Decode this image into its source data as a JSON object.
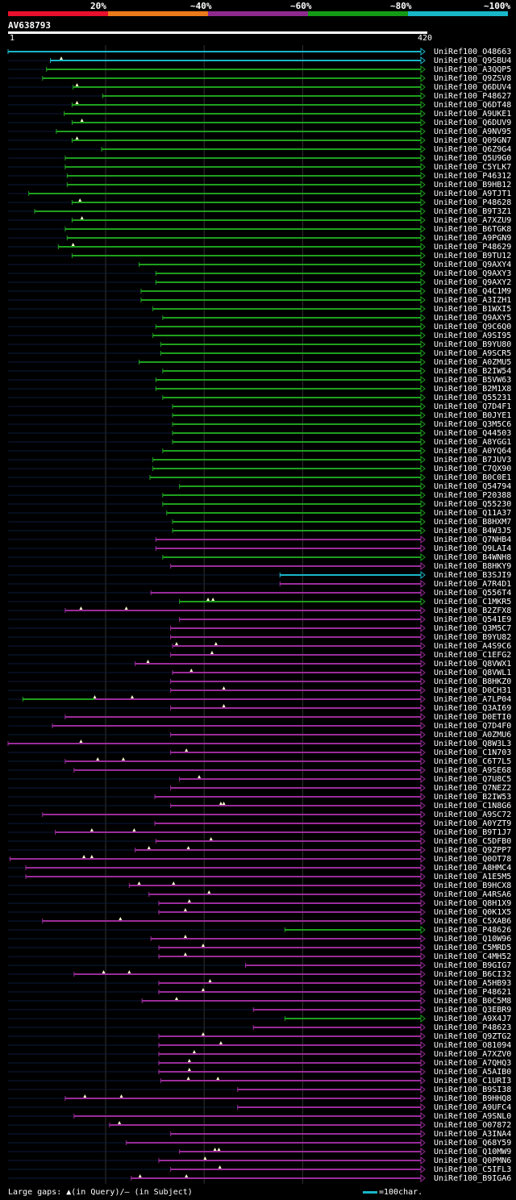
{
  "legend": {
    "labels": [
      "20%",
      "~40%",
      "~60%",
      "~80%",
      "~100%"
    ],
    "colors": [
      "#e8102c",
      "#ea7a1a",
      "#8e2a8e",
      "#149a14",
      "#19b6c8"
    ]
  },
  "query": {
    "name": "AV638793",
    "start": "1",
    "end": "420"
  },
  "footer": {
    "gaps": "Large gaps: ▲(in Query)/– (in Subject)",
    "scale": "=100char."
  },
  "colors": {
    "green": "#1ea01e",
    "purple": "#9a2c9a",
    "cyan": "#19b6c8",
    "dark": "#0c1a3c",
    "grid": "#333333"
  },
  "hits": [
    {
      "id": "UniRef100_O48663",
      "s": 1,
      "c": "c",
      "g": []
    },
    {
      "id": "UniRef100_Q9SBU4",
      "s": 44,
      "c": "c",
      "g": [
        55
      ]
    },
    {
      "id": "UniRef100_A3QQP5",
      "s": 40,
      "c": "g",
      "g": []
    },
    {
      "id": "UniRef100_Q9ZSV8",
      "s": 36,
      "c": "g",
      "g": []
    },
    {
      "id": "UniRef100_Q6DUV4",
      "s": 67,
      "c": "g",
      "g": [
        71
      ]
    },
    {
      "id": "UniRef100_P48627",
      "s": 97,
      "c": "g",
      "g": []
    },
    {
      "id": "UniRef100_Q6DT48",
      "s": 66,
      "c": "g",
      "g": [
        71
      ]
    },
    {
      "id": "UniRef100_A9UKE1",
      "s": 58,
      "c": "g",
      "g": []
    },
    {
      "id": "UniRef100_Q6DUV9",
      "s": 66,
      "c": "g",
      "g": [
        76
      ]
    },
    {
      "id": "UniRef100_A9NV95",
      "s": 50,
      "c": "g",
      "g": []
    },
    {
      "id": "UniRef100_Q09GN7",
      "s": 66,
      "c": "g",
      "g": [
        71
      ]
    },
    {
      "id": "UniRef100_Q6Z9G4",
      "s": 96,
      "c": "g",
      "g": []
    },
    {
      "id": "UniRef100_Q5U9G0",
      "s": 59,
      "c": "g",
      "g": []
    },
    {
      "id": "UniRef100_C5YLK7",
      "s": 59,
      "c": "g",
      "g": []
    },
    {
      "id": "UniRef100_P46312",
      "s": 61,
      "c": "g",
      "g": []
    },
    {
      "id": "UniRef100_B9HB12",
      "s": 61,
      "c": "g",
      "g": []
    },
    {
      "id": "UniRef100_A9TJT1",
      "s": 22,
      "c": "g",
      "g": []
    },
    {
      "id": "UniRef100_P48628",
      "s": 66,
      "c": "g",
      "g": [
        74
      ]
    },
    {
      "id": "UniRef100_B9T3Z1",
      "s": 28,
      "c": "g",
      "g": []
    },
    {
      "id": "UniRef100_A7XZU9",
      "s": 66,
      "c": "g",
      "g": [
        76
      ]
    },
    {
      "id": "UniRef100_B6TGK8",
      "s": 59,
      "c": "g",
      "g": []
    },
    {
      "id": "UniRef100_A9PGN9",
      "s": 61,
      "c": "g",
      "g": []
    },
    {
      "id": "UniRef100_P48629",
      "s": 52,
      "c": "g",
      "g": [
        67
      ]
    },
    {
      "id": "UniRef100_B9TU12",
      "s": 66,
      "c": "g",
      "g": []
    },
    {
      "id": "UniRef100_Q9AXY4",
      "s": 134,
      "c": "g",
      "g": []
    },
    {
      "id": "UniRef100_Q9AXY3",
      "s": 151,
      "c": "g",
      "g": []
    },
    {
      "id": "UniRef100_Q9AXY2",
      "s": 151,
      "c": "g",
      "g": []
    },
    {
      "id": "UniRef100_Q4C1M9",
      "s": 136,
      "c": "g",
      "g": []
    },
    {
      "id": "UniRef100_A3IZH1",
      "s": 136,
      "c": "g",
      "g": []
    },
    {
      "id": "UniRef100_B1WXI5",
      "s": 148,
      "c": "g",
      "g": []
    },
    {
      "id": "UniRef100_Q9AXY5",
      "s": 158,
      "c": "g",
      "g": []
    },
    {
      "id": "UniRef100_Q9C6Q0",
      "s": 151,
      "c": "g",
      "g": []
    },
    {
      "id": "UniRef100_A9SI95",
      "s": 148,
      "c": "g",
      "g": []
    },
    {
      "id": "UniRef100_B9YU80",
      "s": 156,
      "c": "g",
      "g": []
    },
    {
      "id": "UniRef100_A9SCR5",
      "s": 156,
      "c": "g",
      "g": []
    },
    {
      "id": "UniRef100_A0ZMU5",
      "s": 134,
      "c": "g",
      "g": []
    },
    {
      "id": "UniRef100_B2IW54",
      "s": 158,
      "c": "g",
      "g": []
    },
    {
      "id": "UniRef100_B5VW63",
      "s": 151,
      "c": "g",
      "g": []
    },
    {
      "id": "UniRef100_B2M1X8",
      "s": 151,
      "c": "g",
      "g": []
    },
    {
      "id": "UniRef100_Q55231",
      "s": 158,
      "c": "g",
      "g": []
    },
    {
      "id": "UniRef100_Q7D4F1",
      "s": 168,
      "c": "g",
      "g": []
    },
    {
      "id": "UniRef100_B0JYE1",
      "s": 168,
      "c": "g",
      "g": []
    },
    {
      "id": "UniRef100_Q3M5C6",
      "s": 168,
      "c": "g",
      "g": []
    },
    {
      "id": "UniRef100_Q44503",
      "s": 168,
      "c": "g",
      "g": []
    },
    {
      "id": "UniRef100_A8YGG1",
      "s": 168,
      "c": "g",
      "g": []
    },
    {
      "id": "UniRef100_A0YQ64",
      "s": 158,
      "c": "g",
      "g": []
    },
    {
      "id": "UniRef100_B7JUV3",
      "s": 148,
      "c": "g",
      "g": []
    },
    {
      "id": "UniRef100_C7QX90",
      "s": 148,
      "c": "g",
      "g": []
    },
    {
      "id": "UniRef100_B0C0E1",
      "s": 145,
      "c": "g",
      "g": []
    },
    {
      "id": "UniRef100_Q54794",
      "s": 175,
      "c": "g",
      "g": []
    },
    {
      "id": "UniRef100_P20388",
      "s": 158,
      "c": "g",
      "g": []
    },
    {
      "id": "UniRef100_Q55230",
      "s": 158,
      "c": "g",
      "g": []
    },
    {
      "id": "UniRef100_Q11A37",
      "s": 162,
      "c": "g",
      "g": []
    },
    {
      "id": "UniRef100_B8HXM7",
      "s": 168,
      "c": "g",
      "g": []
    },
    {
      "id": "UniRef100_B4W3J5",
      "s": 168,
      "c": "g",
      "g": []
    },
    {
      "id": "UniRef100_Q7NHB4",
      "s": 151,
      "c": "p",
      "g": []
    },
    {
      "id": "UniRef100_Q9LAI4",
      "s": 151,
      "c": "p",
      "g": []
    },
    {
      "id": "UniRef100_B4WNH8",
      "s": 158,
      "c": "g",
      "g": []
    },
    {
      "id": "UniRef100_B8HKY9",
      "s": 166,
      "c": "p",
      "g": []
    },
    {
      "id": "UniRef100_B3SJI9",
      "s": 277,
      "c": "c",
      "g": []
    },
    {
      "id": "UniRef100_A7R4D1",
      "s": 277,
      "c": "p",
      "g": []
    },
    {
      "id": "UniRef100_Q556T4",
      "s": 146,
      "c": "p",
      "g": []
    },
    {
      "id": "UniRef100_C1MKR5",
      "s": 175,
      "c": "g",
      "g": [
        204,
        209
      ]
    },
    {
      "id": "UniRef100_B2ZFX8",
      "s": 59,
      "c": "p",
      "g": [
        75,
        121
      ]
    },
    {
      "id": "UniRef100_Q541E9",
      "s": 175,
      "c": "p",
      "g": []
    },
    {
      "id": "UniRef100_Q3M5C7",
      "s": 166,
      "c": "p",
      "g": []
    },
    {
      "id": "UniRef100_B9YU82",
      "s": 166,
      "c": "p",
      "g": []
    },
    {
      "id": "UniRef100_A4S9C6",
      "s": 168,
      "c": "p",
      "g": [
        172,
        212
      ]
    },
    {
      "id": "UniRef100_C1EFG2",
      "s": 166,
      "c": "p",
      "g": [
        208
      ]
    },
    {
      "id": "UniRef100_Q8VWX1",
      "s": 130,
      "c": "p",
      "g": [
        143
      ]
    },
    {
      "id": "UniRef100_Q8VWL1",
      "s": 168,
      "c": "p",
      "g": [
        187
      ]
    },
    {
      "id": "UniRef100_B8HKZ0",
      "s": 166,
      "c": "p",
      "g": []
    },
    {
      "id": "UniRef100_D0CH31",
      "s": 166,
      "c": "p",
      "g": [
        220
      ]
    },
    {
      "id": "UniRef100_A7LP04",
      "s": 16,
      "c": "pg",
      "g": [
        89,
        127
      ]
    },
    {
      "id": "UniRef100_Q3AI69",
      "s": 166,
      "c": "p",
      "g": [
        220
      ]
    },
    {
      "id": "UniRef100_D0ETI0",
      "s": 59,
      "c": "p",
      "g": []
    },
    {
      "id": "UniRef100_Q7D4F0",
      "s": 46,
      "c": "p",
      "g": []
    },
    {
      "id": "UniRef100_A0ZMU6",
      "s": 166,
      "c": "p",
      "g": []
    },
    {
      "id": "UniRef100_Q8W3L3",
      "s": 1,
      "c": "p",
      "g": [
        75
      ]
    },
    {
      "id": "UniRef100_C1N703",
      "s": 166,
      "c": "p",
      "g": [
        182
      ]
    },
    {
      "id": "UniRef100_C6T7L5",
      "s": 59,
      "c": "p",
      "g": [
        92,
        118
      ]
    },
    {
      "id": "UniRef100_A9SE68",
      "s": 68,
      "c": "p",
      "g": []
    },
    {
      "id": "UniRef100_Q7U8C5",
      "s": 175,
      "c": "p",
      "g": [
        195
      ]
    },
    {
      "id": "UniRef100_Q7NEZ2",
      "s": 166,
      "c": "p",
      "g": []
    },
    {
      "id": "UniRef100_B2IW53",
      "s": 150,
      "c": "p",
      "g": []
    },
    {
      "id": "UniRef100_C1N8G6",
      "s": 166,
      "c": "p",
      "g": [
        217,
        220
      ]
    },
    {
      "id": "UniRef100_A9SC72",
      "s": 36,
      "c": "p",
      "g": []
    },
    {
      "id": "UniRef100_A0YZT9",
      "s": 150,
      "c": "p",
      "g": []
    },
    {
      "id": "UniRef100_B9T1J7",
      "s": 49,
      "c": "p",
      "g": [
        86,
        129
      ]
    },
    {
      "id": "UniRef100_C5DFB0",
      "s": 151,
      "c": "p",
      "g": [
        207
      ]
    },
    {
      "id": "UniRef100_Q9ZPP7",
      "s": 130,
      "c": "p",
      "g": [
        144,
        184
      ]
    },
    {
      "id": "UniRef100_Q0OT78",
      "s": 3,
      "c": "p",
      "g": [
        78,
        86
      ]
    },
    {
      "id": "UniRef100_A8HMC4",
      "s": 19,
      "c": "p",
      "g": []
    },
    {
      "id": "UniRef100_A1E5M5",
      "s": 19,
      "c": "p",
      "g": []
    },
    {
      "id": "UniRef100_B9HCX8",
      "s": 124,
      "c": "p",
      "g": [
        134,
        169
      ]
    },
    {
      "id": "UniRef100_A4RSA6",
      "s": 144,
      "c": "p",
      "g": [
        205
      ]
    },
    {
      "id": "UniRef100_Q8H1X9",
      "s": 154,
      "c": "p",
      "g": [
        185
      ]
    },
    {
      "id": "UniRef100_Q0K1X5",
      "s": 154,
      "c": "p",
      "g": [
        181
      ]
    },
    {
      "id": "UniRef100_C5XAB6",
      "s": 36,
      "c": "p",
      "g": [
        115
      ]
    },
    {
      "id": "UniRef100_P48626",
      "s": 282,
      "c": "g",
      "g": []
    },
    {
      "id": "UniRef100_Q10W96",
      "s": 146,
      "c": "p",
      "g": [
        181
      ]
    },
    {
      "id": "UniRef100_C5MRD5",
      "s": 154,
      "c": "p",
      "g": [
        199
      ]
    },
    {
      "id": "UniRef100_C4MH52",
      "s": 154,
      "c": "p",
      "g": [
        181
      ]
    },
    {
      "id": "UniRef100_B9GIG7",
      "s": 242,
      "c": "p",
      "g": []
    },
    {
      "id": "UniRef100_B6CI32",
      "s": 68,
      "c": "p",
      "g": [
        98,
        124
      ]
    },
    {
      "id": "UniRef100_A5HB93",
      "s": 154,
      "c": "p",
      "g": [
        206
      ]
    },
    {
      "id": "UniRef100_P48621",
      "s": 154,
      "c": "p",
      "g": [
        199
      ]
    },
    {
      "id": "UniRef100_B0C5M8",
      "s": 137,
      "c": "p",
      "g": [
        172
      ]
    },
    {
      "id": "UniRef100_Q3EBR9",
      "s": 250,
      "c": "p",
      "g": []
    },
    {
      "id": "UniRef100_A9X4J7",
      "s": 282,
      "c": "g",
      "g": []
    },
    {
      "id": "UniRef100_P48623",
      "s": 250,
      "c": "p",
      "g": []
    },
    {
      "id": "UniRef100_Q9ZTG2",
      "s": 154,
      "c": "p",
      "g": [
        199
      ]
    },
    {
      "id": "UniRef100_O81094",
      "s": 154,
      "c": "p",
      "g": [
        217
      ]
    },
    {
      "id": "UniRef100_A7XZV0",
      "s": 154,
      "c": "p",
      "g": [
        190
      ]
    },
    {
      "id": "UniRef100_A7QHQ3",
      "s": 154,
      "c": "p",
      "g": [
        185
      ]
    },
    {
      "id": "UniRef100_A5AIB0",
      "s": 154,
      "c": "p",
      "g": [
        185
      ]
    },
    {
      "id": "UniRef100_C1URI3",
      "s": 156,
      "c": "p",
      "g": [
        184,
        214
      ]
    },
    {
      "id": "UniRef100_B9SI38",
      "s": 234,
      "c": "p",
      "g": []
    },
    {
      "id": "UniRef100_B9HHQ8",
      "s": 59,
      "c": "p",
      "g": [
        79,
        116
      ]
    },
    {
      "id": "UniRef100_A9UFC4",
      "s": 234,
      "c": "p",
      "g": []
    },
    {
      "id": "UniRef100_A9SNL0",
      "s": 68,
      "c": "p",
      "g": []
    },
    {
      "id": "UniRef100_O07872",
      "s": 104,
      "c": "p",
      "g": [
        114
      ]
    },
    {
      "id": "UniRef100_A3INA4",
      "s": 166,
      "c": "p",
      "g": []
    },
    {
      "id": "UniRef100_Q68Y59",
      "s": 121,
      "c": "p",
      "g": []
    },
    {
      "id": "UniRef100_Q10MW9",
      "s": 175,
      "c": "p",
      "g": [
        211,
        215
      ]
    },
    {
      "id": "UniRef100_Q0PMN6",
      "s": 154,
      "c": "p",
      "g": [
        201
      ]
    },
    {
      "id": "UniRef100_C5IFL3",
      "s": 166,
      "c": "p",
      "g": [
        216
      ]
    },
    {
      "id": "UniRef100_B9IGA6",
      "s": 126,
      "c": "p",
      "g": [
        135,
        182
      ]
    }
  ]
}
